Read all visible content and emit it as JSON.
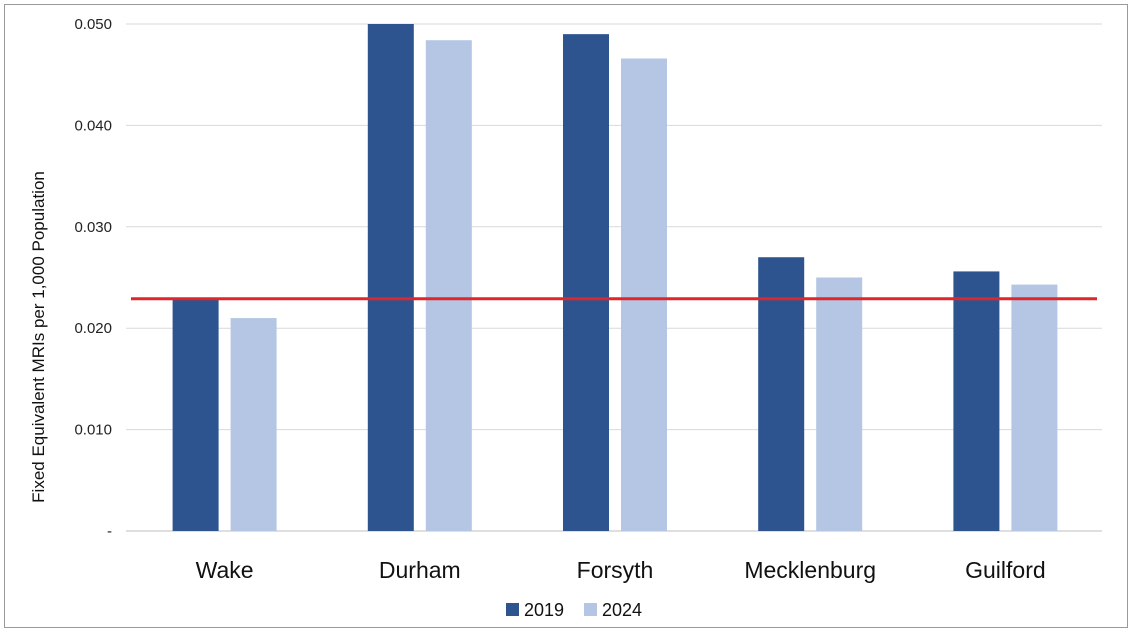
{
  "chart_data": {
    "type": "bar",
    "categories": [
      "Wake",
      "Durham",
      "Forsyth",
      "Mecklenburg",
      "Guilford"
    ],
    "series": [
      {
        "name": "2019",
        "values": [
          0.0229,
          0.05,
          0.049,
          0.027,
          0.0256
        ],
        "color": "#2d548f"
      },
      {
        "name": "2024",
        "values": [
          0.021,
          0.0484,
          0.0466,
          0.025,
          0.0243
        ],
        "color": "#b4c6e3"
      }
    ],
    "reference_line": {
      "value": 0.0229,
      "color": "#e0262b"
    },
    "ylabel": "Fixed Equivalent MRIs per 1,000 Population",
    "xlabel": "",
    "title": "",
    "ylim": [
      0,
      0.05
    ],
    "yticks": [
      {
        "value": 0,
        "label": "-"
      },
      {
        "value": 0.01,
        "label": "0.010"
      },
      {
        "value": 0.02,
        "label": "0.020"
      },
      {
        "value": 0.03,
        "label": "0.030"
      },
      {
        "value": 0.04,
        "label": "0.040"
      },
      {
        "value": 0.05,
        "label": "0.050"
      }
    ],
    "grid": true,
    "legend": "bottom-center"
  }
}
